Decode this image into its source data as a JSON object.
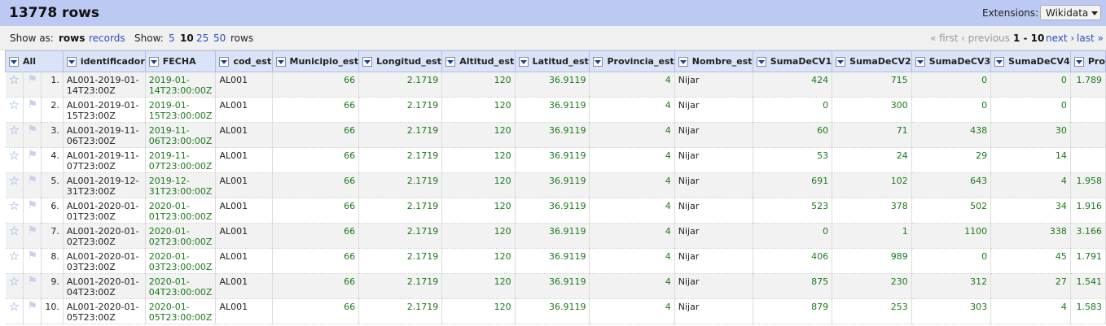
{
  "header": {
    "row_count": "13778 rows",
    "extensions_label": "Extensions:",
    "extensions_button": "Wikidata"
  },
  "viewbar": {
    "show_as": "Show as:",
    "rows": "rows",
    "records": "records",
    "show": "Show:",
    "sizes": [
      "5",
      "10",
      "25",
      "50"
    ],
    "size_suffix": "rows",
    "first": "« first",
    "previous": "‹ previous",
    "range": "1 - 10",
    "next": "next ›",
    "last": "last »"
  },
  "columns": [
    "All",
    "identificador",
    "FECHA",
    "cod_est",
    "Municipio_est",
    "Longitud_est",
    "Altitud_est",
    "Latitud_est",
    "Provincia_est",
    "Nombre_est",
    "SumaDeCV1",
    "SumaDeCV2",
    "SumaDeCV3",
    "SumaDeCV4",
    "Pro"
  ],
  "rows": [
    {
      "n": "1.",
      "id": "AL001-2019-01-14T23:00Z",
      "fecha": "2019-01-14T23:00:00Z",
      "cod": "AL001",
      "mun": "66",
      "lon": "2.1719",
      "alt": "120",
      "lat": "36.9119",
      "prov": "4",
      "nom": "Nijar",
      "cv1": "424",
      "cv2": "715",
      "cv3": "0",
      "cv4": "0",
      "pro": "1.789"
    },
    {
      "n": "2.",
      "id": "AL001-2019-01-15T23:00Z",
      "fecha": "2019-01-15T23:00:00Z",
      "cod": "AL001",
      "mun": "66",
      "lon": "2.1719",
      "alt": "120",
      "lat": "36.9119",
      "prov": "4",
      "nom": "Nijar",
      "cv1": "0",
      "cv2": "300",
      "cv3": "0",
      "cv4": "0",
      "pro": ""
    },
    {
      "n": "3.",
      "id": "AL001-2019-11-06T23:00Z",
      "fecha": "2019-11-06T23:00:00Z",
      "cod": "AL001",
      "mun": "66",
      "lon": "2.1719",
      "alt": "120",
      "lat": "36.9119",
      "prov": "4",
      "nom": "Nijar",
      "cv1": "60",
      "cv2": "71",
      "cv3": "438",
      "cv4": "30",
      "pro": ""
    },
    {
      "n": "4.",
      "id": "AL001-2019-11-07T23:00Z",
      "fecha": "2019-11-07T23:00:00Z",
      "cod": "AL001",
      "mun": "66",
      "lon": "2.1719",
      "alt": "120",
      "lat": "36.9119",
      "prov": "4",
      "nom": "Nijar",
      "cv1": "53",
      "cv2": "24",
      "cv3": "29",
      "cv4": "14",
      "pro": ""
    },
    {
      "n": "5.",
      "id": "AL001-2019-12-31T23:00Z",
      "fecha": "2019-12-31T23:00:00Z",
      "cod": "AL001",
      "mun": "66",
      "lon": "2.1719",
      "alt": "120",
      "lat": "36.9119",
      "prov": "4",
      "nom": "Nijar",
      "cv1": "691",
      "cv2": "102",
      "cv3": "643",
      "cv4": "4",
      "pro": "1.958"
    },
    {
      "n": "6.",
      "id": "AL001-2020-01-01T23:00Z",
      "fecha": "2020-01-01T23:00:00Z",
      "cod": "AL001",
      "mun": "66",
      "lon": "2.1719",
      "alt": "120",
      "lat": "36.9119",
      "prov": "4",
      "nom": "Nijar",
      "cv1": "523",
      "cv2": "378",
      "cv3": "502",
      "cv4": "34",
      "pro": "1.916"
    },
    {
      "n": "7.",
      "id": "AL001-2020-01-02T23:00Z",
      "fecha": "2020-01-02T23:00:00Z",
      "cod": "AL001",
      "mun": "66",
      "lon": "2.1719",
      "alt": "120",
      "lat": "36.9119",
      "prov": "4",
      "nom": "Nijar",
      "cv1": "0",
      "cv2": "1",
      "cv3": "1100",
      "cv4": "338",
      "pro": "3.166"
    },
    {
      "n": "8.",
      "id": "AL001-2020-01-03T23:00Z",
      "fecha": "2020-01-03T23:00:00Z",
      "cod": "AL001",
      "mun": "66",
      "lon": "2.1719",
      "alt": "120",
      "lat": "36.9119",
      "prov": "4",
      "nom": "Nijar",
      "cv1": "406",
      "cv2": "989",
      "cv3": "0",
      "cv4": "45",
      "pro": "1.791"
    },
    {
      "n": "9.",
      "id": "AL001-2020-01-04T23:00Z",
      "fecha": "2020-01-04T23:00:00Z",
      "cod": "AL001",
      "mun": "66",
      "lon": "2.1719",
      "alt": "120",
      "lat": "36.9119",
      "prov": "4",
      "nom": "Nijar",
      "cv1": "875",
      "cv2": "230",
      "cv3": "312",
      "cv4": "27",
      "pro": "1.541"
    },
    {
      "n": "10.",
      "id": "AL001-2020-01-05T23:00Z",
      "fecha": "2020-01-05T23:00:00Z",
      "cod": "AL001",
      "mun": "66",
      "lon": "2.1719",
      "alt": "120",
      "lat": "36.9119",
      "prov": "4",
      "nom": "Nijar",
      "cv1": "879",
      "cv2": "253",
      "cv3": "303",
      "cv4": "4",
      "pro": "1.583"
    }
  ],
  "colors": {
    "header_bar": "#bcc9f2",
    "link": "#2c4fc7",
    "value_green": "#1a7a1a"
  }
}
